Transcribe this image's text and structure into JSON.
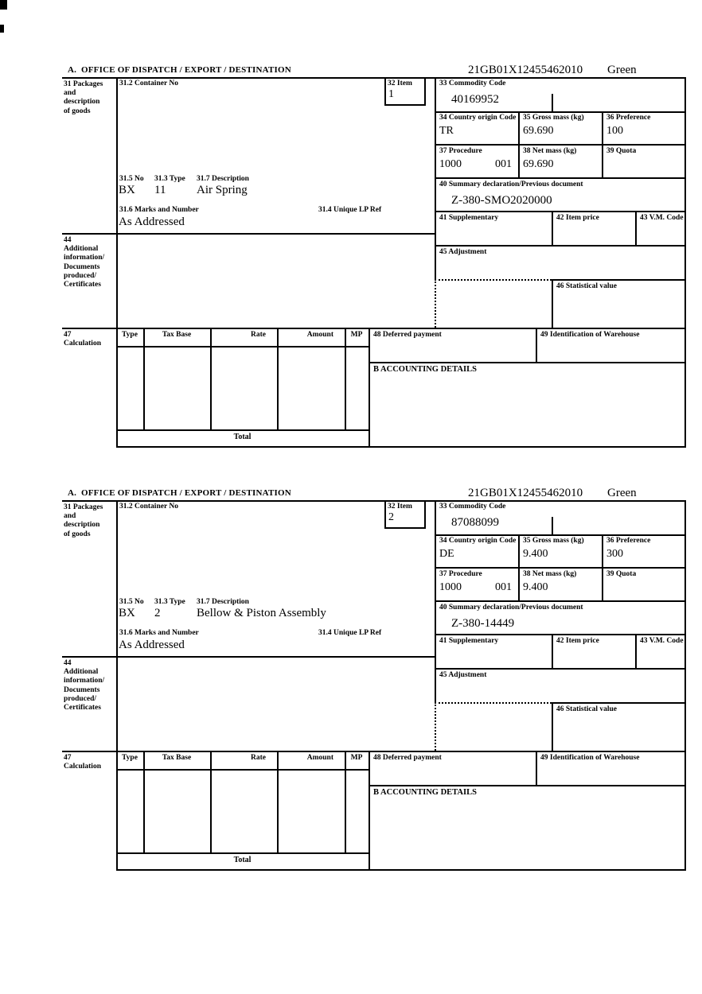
{
  "header": {
    "section_title": "A.  OFFICE OF DISPATCH / EXPORT / DESTINATION",
    "reference_number": "21GB01X12455462010",
    "channel": "Green"
  },
  "labels": {
    "packages": "31 Packages\nand\ndescription\nof goods",
    "container_no": "31.2 Container No",
    "item": "32 Item",
    "commodity_code": "33 Commodity Code",
    "country_origin": "34 Country origin Code",
    "gross_mass": "35 Gross mass (kg)",
    "preference": "36 Preference",
    "procedure": "37 Procedure",
    "net_mass": "38 Net mass (kg)",
    "quota": "39 Quota",
    "summary_declaration": "40 Summary declaration/Previous document",
    "supplementary": "41 Supplementary",
    "item_price": "42 Item price",
    "vm_code": "43 V.M. Code",
    "additional_info": "44\nAdditional\ninformation/\nDocuments\nproduced/\nCertificates",
    "adjustment": "45 Adjustment",
    "statistical_value": "46 Statistical value",
    "packages_no": "31.5 No",
    "packages_type": "31.3 Type",
    "description": "31.7 Description",
    "marks_number": "31.6 Marks and Number",
    "unique_lp_ref": "31.4 Unique LP Ref",
    "calculation": "47\nCalculation",
    "calc_columns": [
      "Type",
      "Tax Base",
      "Rate",
      "Amount",
      "MP"
    ],
    "deferred_payment": "48 Deferred payment",
    "warehouse_id": "49 Identification of Warehouse",
    "accounting_details": "B ACCOUNTING DETAILS",
    "total": "Total"
  },
  "forms": [
    {
      "item_no": "1",
      "commodity_code": "40169952",
      "country_origin_code": "TR",
      "gross_mass_kg": "69.690",
      "preference": "100",
      "procedure_code": "1000",
      "procedure_code2": "001",
      "net_mass_kg": "69.690",
      "summary_declaration": "Z-380-SMO2020000",
      "packages_no": "BX",
      "packages_type": "11",
      "goods_description": "Air Spring",
      "marks_and_number": "As Addressed"
    },
    {
      "item_no": "2",
      "commodity_code": "87088099",
      "country_origin_code": "DE",
      "gross_mass_kg": "9.400",
      "preference": "300",
      "procedure_code": "1000",
      "procedure_code2": "001",
      "net_mass_kg": "9.400",
      "summary_declaration": "Z-380-14449",
      "packages_no": "BX",
      "packages_type": "2",
      "goods_description": "Bellow & Piston Assembly",
      "marks_and_number": "As Addressed"
    }
  ]
}
